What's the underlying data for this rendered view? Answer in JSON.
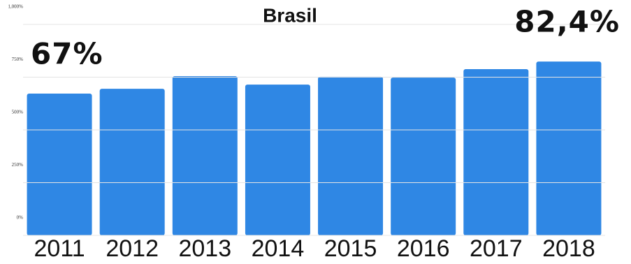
{
  "chart_data": {
    "type": "bar",
    "title": "Brasil",
    "categories": [
      "2011",
      "2012",
      "2013",
      "2014",
      "2015",
      "2016",
      "2017",
      "2018"
    ],
    "values": [
      672,
      695,
      755,
      715,
      752,
      748,
      788,
      824
    ],
    "color": "#2f87e4",
    "ylim": [
      0,
      1000
    ],
    "yticks": [
      {
        "value": 0,
        "label": "0%"
      },
      {
        "value": 250,
        "label": "250%"
      },
      {
        "value": 500,
        "label": "500%"
      },
      {
        "value": 750,
        "label": "750%"
      },
      {
        "value": 1000,
        "label": "1,000%"
      }
    ],
    "grid": true,
    "annotations": [
      "67%",
      "82,4%"
    ]
  }
}
